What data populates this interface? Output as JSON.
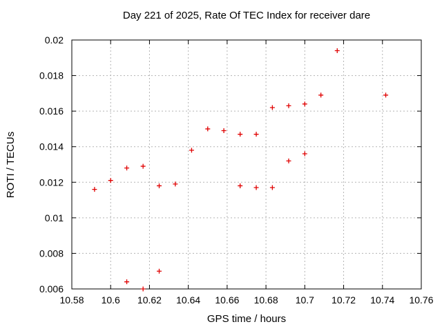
{
  "page": {
    "background": "#ffffff"
  },
  "chart_data": {
    "type": "scatter",
    "title": "Day 221 of 2025, Rate Of TEC Index for receiver dare",
    "xlabel": "GPS time / hours",
    "ylabel": "ROTI / TECUs",
    "xlim": [
      10.58,
      10.76
    ],
    "ylim": [
      0.006,
      0.02
    ],
    "grid": true,
    "legend": "none",
    "axis_color": "#000000",
    "grid_color": "#b3b3b3",
    "marker": {
      "shape": "plus",
      "color": "#e00000",
      "size": 7
    },
    "xticks": {
      "values": [
        10.58,
        10.6,
        10.62,
        10.64,
        10.66,
        10.68,
        10.7,
        10.72,
        10.74,
        10.76
      ],
      "labels": [
        "10.58",
        "10.6",
        "10.62",
        "10.64",
        "10.66",
        "10.68",
        "10.7",
        "10.72",
        "10.74",
        "10.76"
      ]
    },
    "yticks": {
      "values": [
        0.006,
        0.008,
        0.01,
        0.012,
        0.014,
        0.016,
        0.018,
        0.02
      ],
      "labels": [
        "0.006",
        "0.008",
        "0.01",
        "0.012",
        "0.014",
        "0.016",
        "0.018",
        "0.02"
      ]
    },
    "series": [
      {
        "name": "ROTI",
        "points": [
          [
            10.5917,
            0.0116
          ],
          [
            10.6,
            0.0121
          ],
          [
            10.6083,
            0.0064
          ],
          [
            10.6083,
            0.0128
          ],
          [
            10.6167,
            0.006
          ],
          [
            10.6167,
            0.0129
          ],
          [
            10.625,
            0.007
          ],
          [
            10.625,
            0.0118
          ],
          [
            10.6333,
            0.0119
          ],
          [
            10.6417,
            0.0138
          ],
          [
            10.65,
            0.015
          ],
          [
            10.6583,
            0.0149
          ],
          [
            10.6667,
            0.0118
          ],
          [
            10.6667,
            0.0147
          ],
          [
            10.675,
            0.0117
          ],
          [
            10.675,
            0.0147
          ],
          [
            10.6833,
            0.0117
          ],
          [
            10.6833,
            0.0162
          ],
          [
            10.6917,
            0.0132
          ],
          [
            10.6917,
            0.0163
          ],
          [
            10.7,
            0.0136
          ],
          [
            10.7,
            0.0164
          ],
          [
            10.7083,
            0.0169
          ],
          [
            10.7167,
            0.0194
          ],
          [
            10.7417,
            0.0169
          ]
        ]
      }
    ]
  }
}
